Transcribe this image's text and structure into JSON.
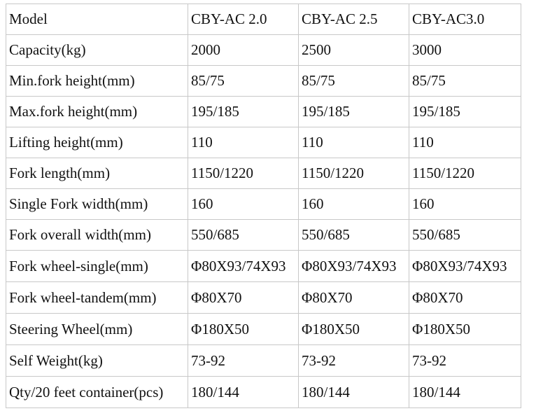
{
  "table": {
    "rows": [
      [
        "Model",
        "CBY-AC 2.0",
        "CBY-AC 2.5",
        "CBY-AC3.0"
      ],
      [
        "Capacity(kg)",
        "2000",
        "2500",
        "3000"
      ],
      [
        "Min.fork height(mm)",
        "85/75",
        "85/75",
        "85/75"
      ],
      [
        "Max.fork height(mm)",
        "195/185",
        "195/185",
        "195/185"
      ],
      [
        "Lifting height(mm)",
        "110",
        "110",
        "110"
      ],
      [
        "Fork length(mm)",
        "1150/1220",
        "1150/1220",
        "1150/1220"
      ],
      [
        "Single Fork width(mm)",
        "160",
        "160",
        "160"
      ],
      [
        "Fork overall width(mm)",
        "550/685",
        "550/685",
        "550/685"
      ],
      [
        "Fork wheel-single(mm)",
        "Φ80X93/74X93",
        "Φ80X93/74X93",
        "Φ80X93/74X93"
      ],
      [
        "Fork wheel-tandem(mm)",
        "Φ80X70",
        "Φ80X70",
        "Φ80X70"
      ],
      [
        "Steering Wheel(mm)",
        "Φ180X50",
        "Φ180X50",
        "Φ180X50"
      ],
      [
        "Self Weight(kg)",
        "73-92",
        "73-92",
        "73-92"
      ],
      [
        "Qty/20 feet container(pcs)",
        "180/144",
        "180/144",
        "180/144"
      ]
    ]
  }
}
